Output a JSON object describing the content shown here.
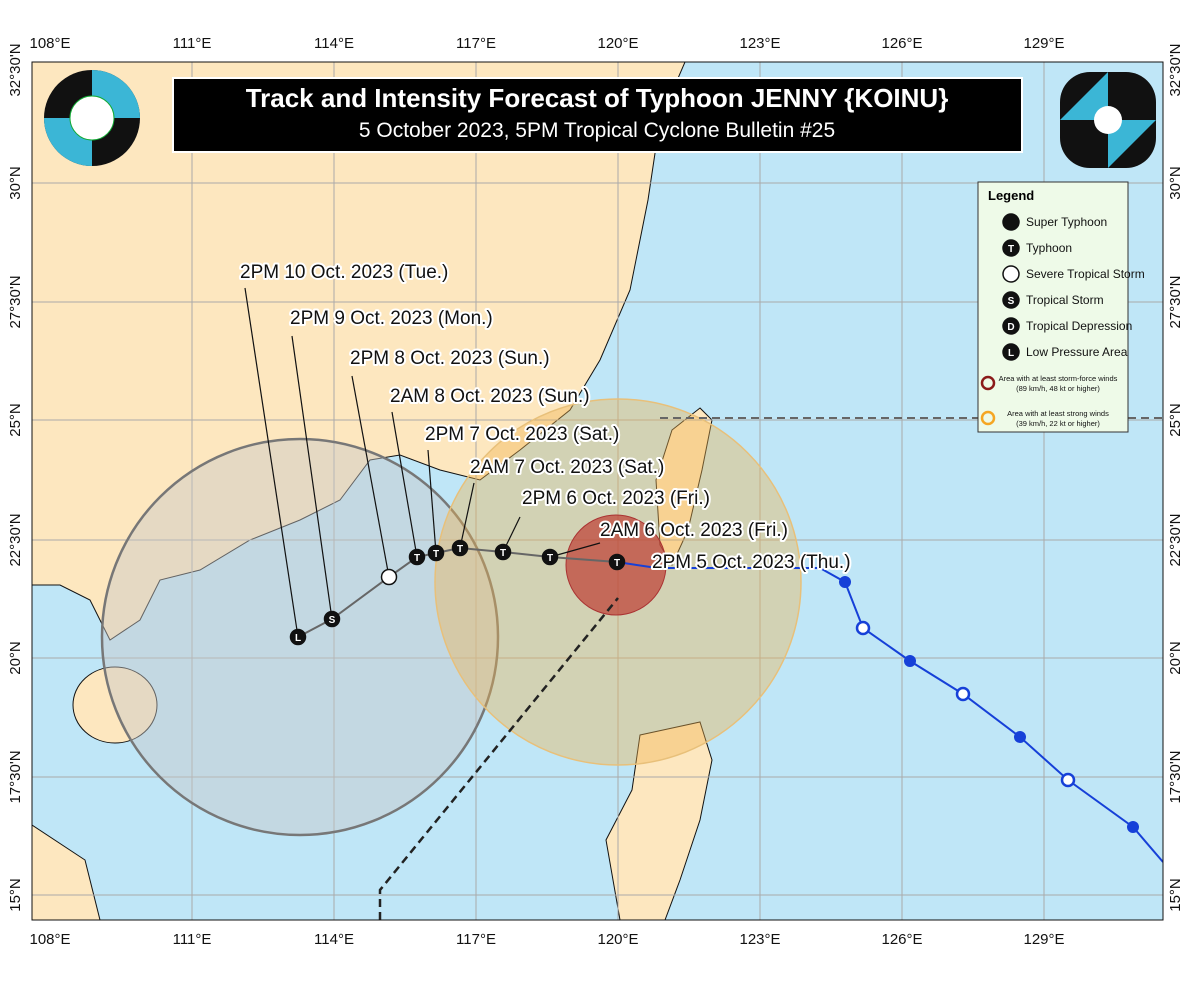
{
  "header": {
    "title": "Track and Intensity Forecast of Typhoon JENNY {KOINU}",
    "subtitle": "5 October 2023, 5PM Tropical Cyclone Bulletin #25"
  },
  "lon_labels": [
    "108°E",
    "111°E",
    "114°E",
    "117°E",
    "120°E",
    "123°E",
    "126°E",
    "129°E"
  ],
  "lat_labels": [
    "32°30'N",
    "30°N",
    "27°30'N",
    "25°N",
    "22°30'N",
    "20°N",
    "17°30'N",
    "15°N"
  ],
  "forecast_labels": [
    "2PM 10 Oct. 2023 (Tue.)",
    "2PM 9 Oct. 2023 (Mon.)",
    "2PM 8 Oct. 2023 (Sun.)",
    "2AM 8 Oct. 2023 (Sun.)",
    "2PM 7 Oct. 2023 (Sat.)",
    "2AM 7 Oct. 2023 (Sat.)",
    "2PM 6 Oct. 2023 (Fri.)",
    "2AM 6 Oct. 2023 (Fri.)",
    "2PM 5 Oct. 2023 (Thu.)"
  ],
  "legend": {
    "title": "Legend",
    "items": [
      "Super Typhoon",
      "Typhoon",
      "Severe Tropical Storm",
      "Tropical Storm",
      "Tropical Depression",
      "Low Pressure Area"
    ],
    "areas": [
      {
        "title": "Area with at least storm-force winds",
        "note": "(89 km/h, 48 kt or higher)"
      },
      {
        "title": "Area with at least strong winds",
        "note": "(39 km/h, 22 kt or higher)"
      }
    ]
  },
  "symbols": {
    "typhoon": "T",
    "storm": "S",
    "low": "L",
    "depression": "D"
  }
}
